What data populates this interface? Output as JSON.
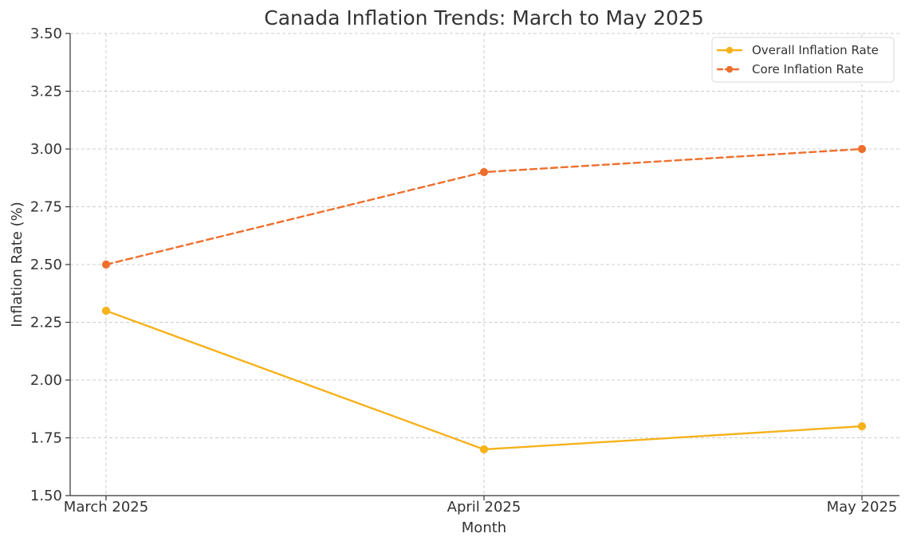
{
  "chart_data": {
    "type": "line",
    "title": "Canada Inflation Trends: March to May 2025",
    "xlabel": "Month",
    "ylabel": "Inflation Rate (%)",
    "categories": [
      "March 2025",
      "April 2025",
      "May 2025"
    ],
    "ylim": [
      1.5,
      3.5
    ],
    "yticks": [
      "1.50",
      "1.75",
      "2.00",
      "2.25",
      "2.50",
      "2.75",
      "3.00",
      "3.25",
      "3.50"
    ],
    "grid": true,
    "legend_position": "top-right",
    "series": [
      {
        "name": "Overall Inflation Rate",
        "values": [
          2.3,
          1.7,
          1.8
        ],
        "color": "#f5b21b",
        "line_style": "solid",
        "marker": "circle"
      },
      {
        "name": "Core Inflation Rate",
        "values": [
          2.5,
          2.9,
          3.0
        ],
        "color": "#ee6f2d",
        "line_style": "dashed",
        "marker": "circle"
      }
    ]
  }
}
